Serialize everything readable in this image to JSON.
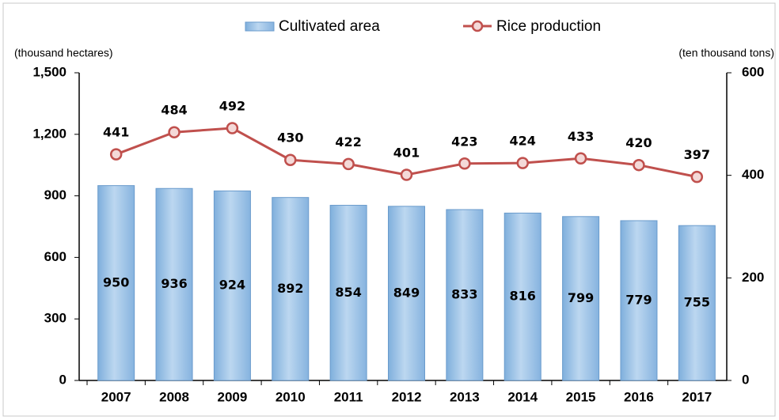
{
  "chart_data": {
    "type": "bar",
    "categories": [
      "2007",
      "2008",
      "2009",
      "2010",
      "2011",
      "2012",
      "2013",
      "2014",
      "2015",
      "2016",
      "2017"
    ],
    "y_label": "(thousand hectares)",
    "y2_label": "(ten thousand tons)",
    "series": [
      {
        "name": "Cultivated area",
        "type": "bar",
        "color": "#9dc3e6",
        "values": [
          950,
          936,
          924,
          892,
          854,
          849,
          833,
          816,
          799,
          779,
          755
        ]
      },
      {
        "name": "Rice production",
        "type": "line",
        "axis": "y2",
        "color": "#c0504d",
        "values": [
          441,
          484,
          492,
          430,
          422,
          401,
          423,
          424,
          433,
          420,
          397
        ]
      }
    ],
    "ylim": [
      0,
      1500
    ],
    "yticks": [
      0,
      300,
      600,
      900,
      {
        "value": 1200,
        "label": "1,200"
      },
      {
        "value": 1500,
        "label": "1,500"
      }
    ],
    "y2lim": [
      0,
      600
    ],
    "y2ticks": [
      0,
      200,
      400,
      600
    ],
    "legend": "top",
    "grid": false
  }
}
